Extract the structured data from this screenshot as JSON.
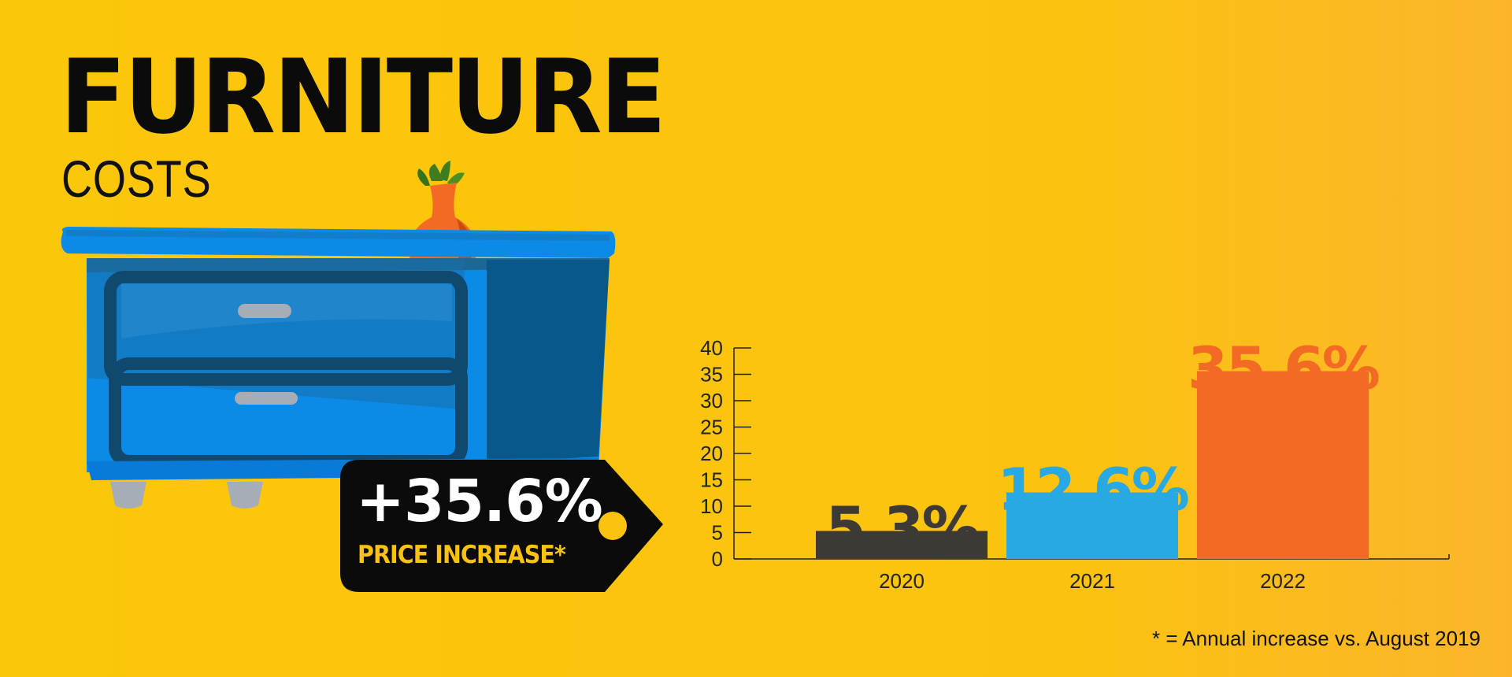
{
  "title": "FURNITURE",
  "subtitle": "COSTS",
  "price_tag": {
    "value": "+35.6%",
    "label": "PRICE INCREASE*"
  },
  "footnote": "* = Annual increase vs. August 2019",
  "colors": {
    "background": "#fbc30f",
    "bar_2020": "#3d3a36",
    "bar_2021": "#29a9e4",
    "bar_2022": "#f26a23",
    "tag": "#0b0b0b",
    "tag_dot": "#fbc30f"
  },
  "chart_data": {
    "type": "bar",
    "categories": [
      "2020",
      "2021",
      "2022"
    ],
    "values": [
      5.3,
      12.6,
      35.6
    ],
    "value_labels": [
      "5.3%",
      "12.6%",
      "35.6%"
    ],
    "bar_colors": [
      "#3d3a36",
      "#29a9e4",
      "#f26a23"
    ],
    "title": "",
    "xlabel": "",
    "ylabel": "",
    "ylim": [
      0,
      40
    ],
    "yticks": [
      0,
      5,
      10,
      15,
      20,
      25,
      30,
      35,
      40
    ],
    "grid": false,
    "legend": "none"
  }
}
